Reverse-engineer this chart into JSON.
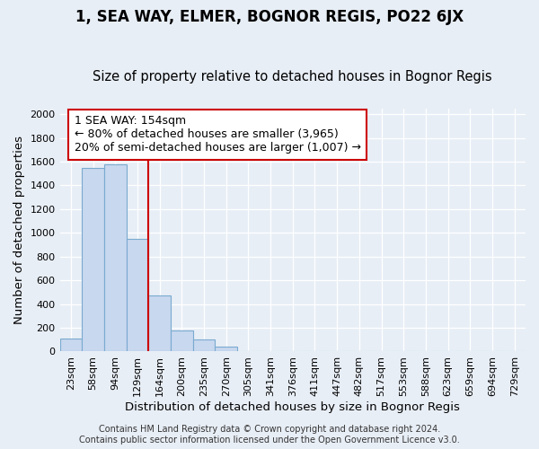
{
  "title": "1, SEA WAY, ELMER, BOGNOR REGIS, PO22 6JX",
  "subtitle": "Size of property relative to detached houses in Bognor Regis",
  "xlabel": "Distribution of detached houses by size in Bognor Regis",
  "ylabel": "Number of detached properties",
  "categories": [
    "23sqm",
    "58sqm",
    "94sqm",
    "129sqm",
    "164sqm",
    "200sqm",
    "235sqm",
    "270sqm",
    "305sqm",
    "341sqm",
    "376sqm",
    "411sqm",
    "447sqm",
    "482sqm",
    "517sqm",
    "553sqm",
    "588sqm",
    "623sqm",
    "659sqm",
    "694sqm",
    "729sqm"
  ],
  "values": [
    110,
    1545,
    1575,
    950,
    475,
    180,
    100,
    40,
    0,
    0,
    0,
    0,
    0,
    0,
    0,
    0,
    0,
    0,
    0,
    0,
    0
  ],
  "bar_color": "#c8d8ee",
  "bar_edge_color": "#7aaad0",
  "vline_color": "#cc0000",
  "vline_pos": 4,
  "ylim": [
    0,
    2050
  ],
  "yticks": [
    0,
    200,
    400,
    600,
    800,
    1000,
    1200,
    1400,
    1600,
    1800,
    2000
  ],
  "annotation_line1": "1 SEA WAY: 154sqm",
  "annotation_line2": "← 80% of detached houses are smaller (3,965)",
  "annotation_line3": "20% of semi-detached houses are larger (1,007) →",
  "annotation_box_color": "#ffffff",
  "annotation_box_edge": "#cc0000",
  "footer_line1": "Contains HM Land Registry data © Crown copyright and database right 2024.",
  "footer_line2": "Contains public sector information licensed under the Open Government Licence v3.0.",
  "background_color": "#e8eef6",
  "grid_color": "#ffffff",
  "title_fontsize": 12,
  "subtitle_fontsize": 10.5,
  "axis_label_fontsize": 9.5,
  "tick_fontsize": 8,
  "annotation_fontsize": 9,
  "footer_fontsize": 7
}
